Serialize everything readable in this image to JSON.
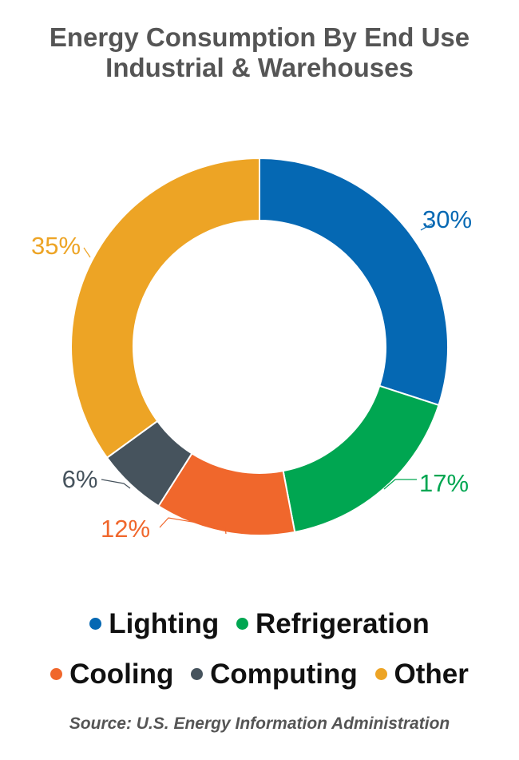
{
  "title": {
    "line1": "Energy Consumption By End Use",
    "line2": "Industrial & Warehouses"
  },
  "chart_data": {
    "type": "pie",
    "style": "donut",
    "categories": [
      "Lighting",
      "Refrigeration",
      "Cooling",
      "Computing",
      "Other"
    ],
    "values": [
      30,
      17,
      12,
      6,
      35
    ],
    "data_labels": [
      "30%",
      "17%",
      "12%",
      "6%",
      "35%"
    ],
    "colors": [
      "#0568b3",
      "#00a651",
      "#f0672c",
      "#46535d",
      "#eda425"
    ],
    "legend_placement": "bottom"
  },
  "legend": {
    "row1": [
      {
        "label": "Lighting",
        "color": "#0568b3"
      },
      {
        "label": "Refrigeration",
        "color": "#00a651"
      }
    ],
    "row2": [
      {
        "label": "Cooling",
        "color": "#f0672c"
      },
      {
        "label": "Computing",
        "color": "#46535d"
      },
      {
        "label": "Other",
        "color": "#eda425"
      }
    ]
  },
  "source": "Source: U.S. Energy Information Administration"
}
